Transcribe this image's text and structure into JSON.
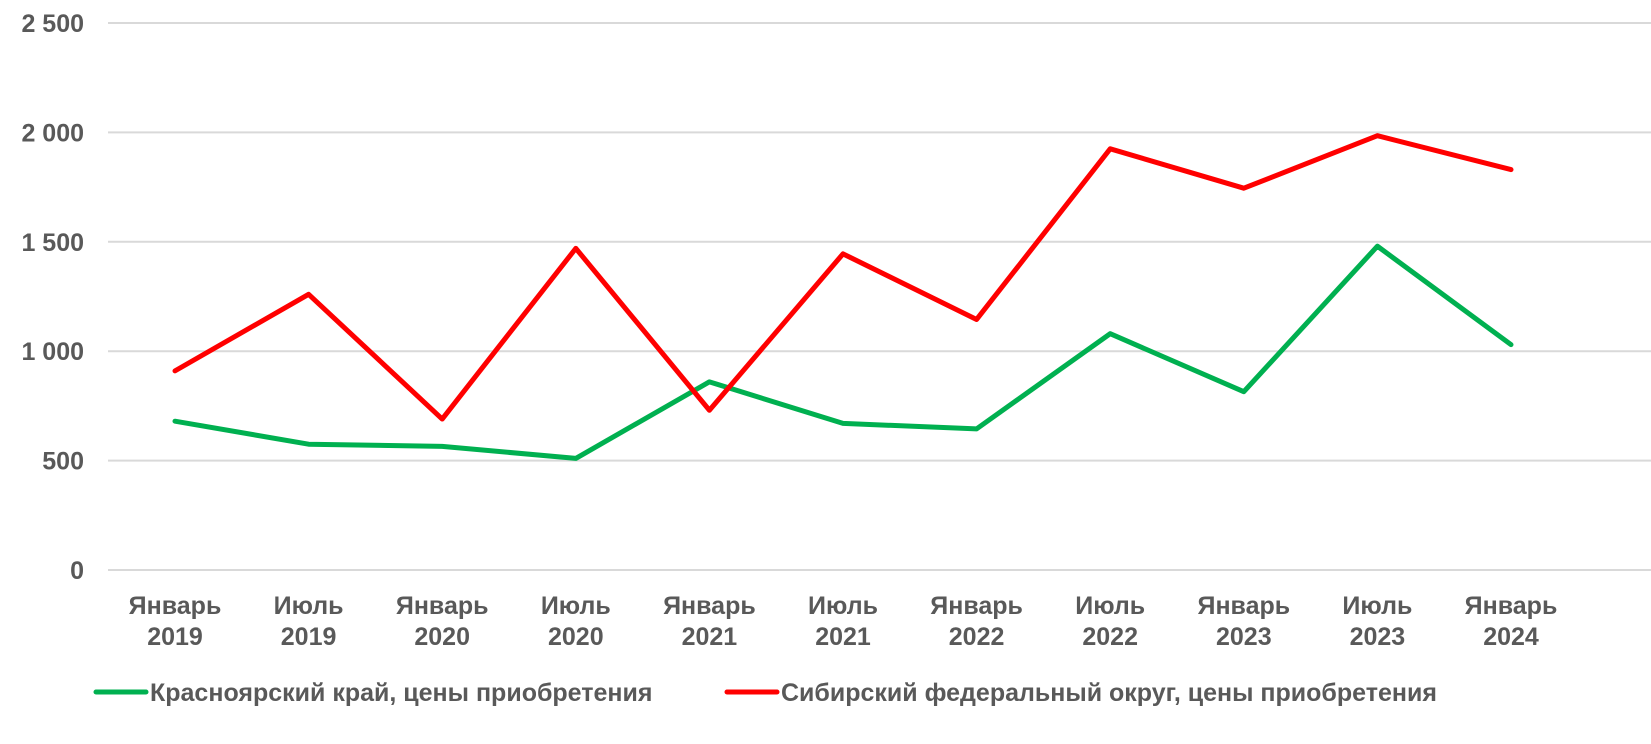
{
  "chart_data": {
    "type": "line",
    "categories": [
      [
        "Январь",
        "2019"
      ],
      [
        "Июль",
        "2019"
      ],
      [
        "Январь",
        "2020"
      ],
      [
        "Июль",
        "2020"
      ],
      [
        "Январь",
        "2021"
      ],
      [
        "Июль",
        "2021"
      ],
      [
        "Январь",
        "2022"
      ],
      [
        "Июль",
        "2022"
      ],
      [
        "Январь",
        "2023"
      ],
      [
        "Июль",
        "2023"
      ],
      [
        "Январь",
        "2024"
      ]
    ],
    "series": [
      {
        "name": "Красноярский край, цены приобретения",
        "color": "#00b050",
        "values": [
          680,
          575,
          565,
          510,
          860,
          670,
          645,
          1080,
          815,
          1480,
          1030
        ]
      },
      {
        "name": "Сибирский федеральный округ, цены приобретения",
        "color": "#ff0000",
        "values": [
          910,
          1260,
          690,
          1470,
          730,
          1445,
          1145,
          1925,
          1745,
          1985,
          1830
        ]
      }
    ],
    "yticks": [
      "0",
      "500",
      "1 000",
      "1 500",
      "2 000",
      "2 500"
    ],
    "ylim": [
      0,
      2500
    ],
    "grid": true,
    "legend": "bottom"
  }
}
